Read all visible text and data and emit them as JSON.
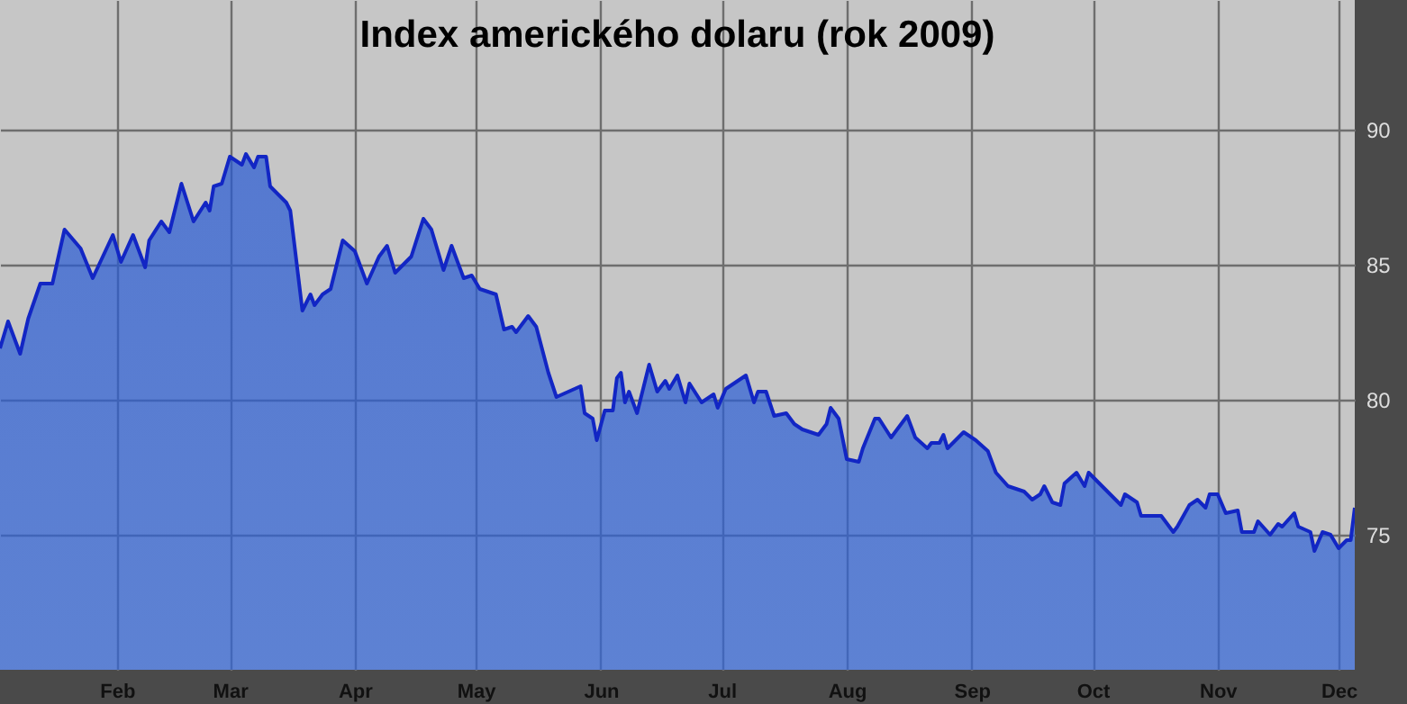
{
  "chart_data": {
    "type": "area",
    "title": "Index amerického dolaru (rok 2009)",
    "x": [
      "2009-01-03",
      "2009-01-05",
      "2009-01-08",
      "2009-01-10",
      "2009-01-13",
      "2009-01-16",
      "2009-01-19",
      "2009-01-23",
      "2009-01-26",
      "2009-01-31",
      "2009-02-02",
      "2009-02-05",
      "2009-02-08",
      "2009-02-09",
      "2009-02-12",
      "2009-02-14",
      "2009-02-17",
      "2009-02-20",
      "2009-02-23",
      "2009-02-24",
      "2009-02-25",
      "2009-02-27",
      "2009-03-01",
      "2009-03-04",
      "2009-03-05",
      "2009-03-07",
      "2009-03-08",
      "2009-03-10",
      "2009-03-11",
      "2009-03-15",
      "2009-03-16",
      "2009-03-19",
      "2009-03-21",
      "2009-03-22",
      "2009-03-24",
      "2009-03-26",
      "2009-03-29",
      "2009-04-01",
      "2009-04-04",
      "2009-04-07",
      "2009-04-09",
      "2009-04-11",
      "2009-04-15",
      "2009-04-18",
      "2009-04-20",
      "2009-04-23",
      "2009-04-25",
      "2009-04-28",
      "2009-04-30",
      "2009-05-02",
      "2009-05-06",
      "2009-05-08",
      "2009-05-10",
      "2009-05-11",
      "2009-05-14",
      "2009-05-16",
      "2009-05-19",
      "2009-05-21",
      "2009-05-24",
      "2009-05-27",
      "2009-05-28",
      "2009-05-30",
      "2009-05-31",
      "2009-06-02",
      "2009-06-04",
      "2009-06-05",
      "2009-06-06",
      "2009-06-07",
      "2009-06-08",
      "2009-06-10",
      "2009-06-13",
      "2009-06-15",
      "2009-06-17",
      "2009-06-18",
      "2009-06-20",
      "2009-06-22",
      "2009-06-23",
      "2009-06-26",
      "2009-06-29",
      "2009-06-30",
      "2009-07-02",
      "2009-07-07",
      "2009-07-09",
      "2009-07-10",
      "2009-07-12",
      "2009-07-14",
      "2009-07-17",
      "2009-07-19",
      "2009-07-21",
      "2009-07-25",
      "2009-07-27",
      "2009-07-28",
      "2009-07-30",
      "2009-08-01",
      "2009-08-04",
      "2009-08-05",
      "2009-08-08",
      "2009-08-09",
      "2009-08-12",
      "2009-08-16",
      "2009-08-18",
      "2009-08-21",
      "2009-08-22",
      "2009-08-24",
      "2009-08-25",
      "2009-08-26",
      "2009-08-30",
      "2009-09-02",
      "2009-09-05",
      "2009-09-07",
      "2009-09-10",
      "2009-09-14",
      "2009-09-16",
      "2009-09-18",
      "2009-09-19",
      "2009-09-21",
      "2009-09-23",
      "2009-09-24",
      "2009-09-27",
      "2009-09-29",
      "2009-09-30",
      "2009-10-04",
      "2009-10-06",
      "2009-10-08",
      "2009-10-09",
      "2009-10-12",
      "2009-10-13",
      "2009-10-16",
      "2009-10-18",
      "2009-10-21",
      "2009-10-22",
      "2009-10-25",
      "2009-10-27",
      "2009-10-29",
      "2009-10-30",
      "2009-11-01",
      "2009-11-03",
      "2009-11-06",
      "2009-11-07",
      "2009-11-10",
      "2009-11-11",
      "2009-11-14",
      "2009-11-16",
      "2009-11-17",
      "2009-11-20",
      "2009-11-21",
      "2009-11-24",
      "2009-11-25",
      "2009-11-27",
      "2009-11-29",
      "2009-12-01",
      "2009-12-03",
      "2009-12-04",
      "2009-12-05"
    ],
    "series": [
      {
        "color": "#3d72de",
        "values": [
          81.9,
          82.9,
          81.7,
          83.0,
          84.3,
          84.3,
          86.3,
          85.6,
          84.5,
          86.1,
          85.1,
          86.1,
          84.9,
          85.9,
          86.6,
          86.2,
          88.0,
          86.6,
          87.3,
          87.0,
          87.9,
          88.0,
          89.0,
          88.7,
          89.1,
          88.6,
          89.0,
          89.0,
          87.9,
          87.3,
          87.0,
          83.3,
          83.9,
          83.5,
          83.9,
          84.1,
          85.9,
          85.5,
          84.3,
          85.3,
          85.7,
          84.7,
          85.3,
          86.7,
          86.3,
          84.8,
          85.7,
          84.5,
          84.6,
          84.1,
          83.9,
          82.6,
          82.7,
          82.5,
          83.1,
          82.7,
          81.0,
          80.1,
          80.3,
          80.5,
          79.5,
          79.3,
          78.5,
          79.6,
          79.6,
          80.8,
          81.0,
          79.9,
          80.3,
          79.5,
          81.3,
          80.3,
          80.7,
          80.4,
          80.9,
          79.9,
          80.6,
          79.9,
          80.2,
          79.7,
          80.4,
          80.9,
          79.9,
          80.3,
          80.3,
          79.4,
          79.5,
          79.1,
          78.9,
          78.7,
          79.1,
          79.7,
          79.3,
          77.8,
          77.7,
          78.2,
          79.3,
          79.3,
          78.6,
          79.4,
          78.6,
          78.2,
          78.4,
          78.4,
          78.7,
          78.2,
          78.8,
          78.5,
          78.1,
          77.3,
          76.8,
          76.6,
          76.3,
          76.5,
          76.8,
          76.2,
          76.1,
          76.9,
          77.3,
          76.8,
          77.3,
          76.7,
          76.4,
          76.1,
          76.5,
          76.2,
          75.7,
          75.7,
          75.7,
          75.1,
          75.3,
          76.1,
          76.3,
          76.0,
          76.5,
          76.5,
          75.8,
          75.9,
          75.1,
          75.1,
          75.5,
          75.0,
          75.4,
          75.3,
          75.8,
          75.3,
          75.1,
          74.4,
          75.1,
          75.0,
          74.5,
          74.8,
          74.8,
          76.0
        ]
      }
    ],
    "xlim": [
      "2009-01-03",
      "2009-12-05"
    ],
    "xticks": [
      {
        "value": "2009-02-01",
        "label": "Feb"
      },
      {
        "value": "2009-03-01",
        "label": "Mar"
      },
      {
        "value": "2009-04-01",
        "label": "Apr"
      },
      {
        "value": "2009-05-01",
        "label": "May"
      },
      {
        "value": "2009-06-01",
        "label": "Jun"
      },
      {
        "value": "2009-07-01",
        "label": "Jul"
      },
      {
        "value": "2009-08-01",
        "label": "Aug"
      },
      {
        "value": "2009-09-01",
        "label": "Sep"
      },
      {
        "value": "2009-10-01",
        "label": "Oct"
      },
      {
        "value": "2009-11-01",
        "label": "Nov"
      },
      {
        "value": "2009-12-01",
        "label": "Dec"
      }
    ],
    "ylim": [
      70,
      94.8
    ],
    "yticks": [
      75,
      80,
      85,
      90
    ],
    "grid": true
  }
}
